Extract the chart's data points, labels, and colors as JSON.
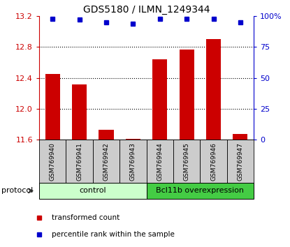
{
  "title": "GDS5180 / ILMN_1249344",
  "samples": [
    "GSM769940",
    "GSM769941",
    "GSM769942",
    "GSM769943",
    "GSM769944",
    "GSM769945",
    "GSM769946",
    "GSM769947"
  ],
  "red_values": [
    12.45,
    12.31,
    11.73,
    11.61,
    12.64,
    12.77,
    12.9,
    11.67
  ],
  "blue_values": [
    98,
    97,
    95,
    94,
    98,
    98,
    98,
    95
  ],
  "ylim": [
    11.6,
    13.2
  ],
  "yticks_left": [
    11.6,
    12.0,
    12.4,
    12.8,
    13.2
  ],
  "yticks_right": [
    0,
    25,
    50,
    75,
    100
  ],
  "bar_color": "#cc0000",
  "dot_color": "#0000cc",
  "control_bg_light": "#ccffcc",
  "treatment_bg": "#44cc44",
  "protocol_label": "protocol",
  "control_label": "control",
  "treatment_label": "Bcl11b overexpression",
  "legend_red_label": "transformed count",
  "legend_blue_label": "percentile rank within the sample",
  "tick_area_bg": "#cccccc",
  "ylabel_left_color": "#cc0000",
  "ylabel_right_color": "#0000cc"
}
